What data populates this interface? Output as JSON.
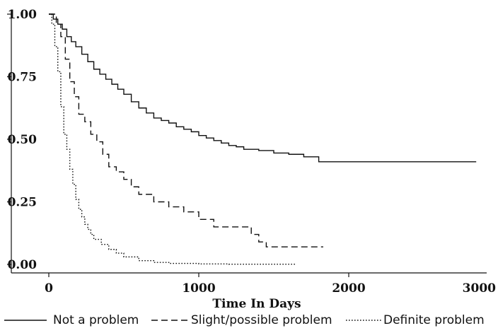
{
  "chart_data": {
    "type": "line",
    "title": "",
    "xlabel": "Time In Days",
    "ylabel": "",
    "xlim": [
      0,
      3000
    ],
    "ylim": [
      0,
      1
    ],
    "x_ticks": [
      0,
      1000,
      2000,
      3000
    ],
    "x_tick_labels": [
      "0",
      "1000",
      "2000",
      "3000"
    ],
    "y_ticks": [
      0,
      0.25,
      0.5,
      0.75,
      1
    ],
    "y_tick_labels": [
      "0.00",
      "0.25",
      "0.50",
      "0.75",
      "1.00"
    ],
    "grid": false,
    "legend_position": "bottom",
    "series": [
      {
        "name": "Not a problem",
        "style": "solid",
        "color": "#111111",
        "x": [
          0,
          30,
          60,
          90,
          120,
          150,
          180,
          220,
          260,
          300,
          340,
          380,
          420,
          460,
          500,
          550,
          600,
          650,
          700,
          750,
          800,
          850,
          900,
          950,
          1000,
          1050,
          1100,
          1150,
          1200,
          1250,
          1300,
          1400,
          1500,
          1600,
          1700,
          1750,
          1800,
          1900,
          2000,
          2200,
          2500,
          2850
        ],
        "y": [
          1.0,
          0.98,
          0.96,
          0.94,
          0.91,
          0.89,
          0.87,
          0.84,
          0.81,
          0.78,
          0.76,
          0.74,
          0.72,
          0.7,
          0.68,
          0.65,
          0.625,
          0.605,
          0.585,
          0.575,
          0.565,
          0.55,
          0.54,
          0.53,
          0.515,
          0.505,
          0.495,
          0.485,
          0.475,
          0.47,
          0.46,
          0.455,
          0.445,
          0.44,
          0.43,
          0.43,
          0.41,
          0.41,
          0.41,
          0.41,
          0.41,
          0.41
        ]
      },
      {
        "name": "Slight/possible problem",
        "style": "dashed",
        "color": "#111111",
        "x": [
          0,
          50,
          80,
          110,
          140,
          170,
          200,
          240,
          280,
          320,
          360,
          400,
          450,
          500,
          550,
          600,
          700,
          800,
          900,
          1000,
          1100,
          1200,
          1250,
          1300,
          1350,
          1400,
          1450,
          1550,
          1650,
          1700,
          1750,
          1800,
          1830
        ],
        "y": [
          1.0,
          0.96,
          0.91,
          0.82,
          0.73,
          0.67,
          0.6,
          0.57,
          0.52,
          0.49,
          0.44,
          0.39,
          0.37,
          0.34,
          0.31,
          0.28,
          0.25,
          0.23,
          0.21,
          0.18,
          0.15,
          0.15,
          0.15,
          0.15,
          0.12,
          0.09,
          0.07,
          0.07,
          0.07,
          0.07,
          0.07,
          0.07,
          0.07
        ]
      },
      {
        "name": "Definite problem",
        "style": "dotted",
        "color": "#111111",
        "x": [
          0,
          20,
          40,
          60,
          80,
          100,
          120,
          140,
          160,
          180,
          200,
          220,
          240,
          260,
          280,
          300,
          350,
          400,
          450,
          500,
          600,
          700,
          800,
          1000,
          1200,
          1400,
          1600,
          1650
        ],
        "y": [
          1.0,
          0.96,
          0.87,
          0.77,
          0.63,
          0.52,
          0.46,
          0.38,
          0.32,
          0.26,
          0.22,
          0.19,
          0.16,
          0.14,
          0.12,
          0.1,
          0.08,
          0.06,
          0.045,
          0.03,
          0.015,
          0.008,
          0.004,
          0.002,
          0.001,
          0.001,
          0.001,
          0.001
        ]
      }
    ]
  }
}
